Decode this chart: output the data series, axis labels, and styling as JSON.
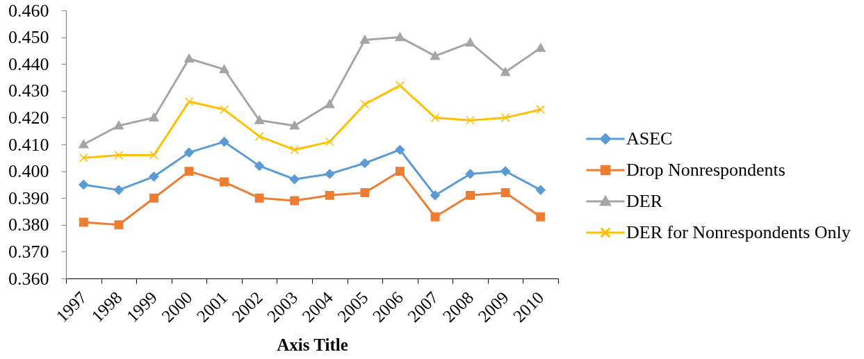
{
  "chart_data": {
    "type": "line",
    "xlabel": "Axis Title",
    "categories": [
      "1997",
      "1998",
      "1999",
      "2000",
      "2001",
      "2002",
      "2003",
      "2004",
      "2005",
      "2006",
      "2007",
      "2008",
      "2009",
      "2010"
    ],
    "series": [
      {
        "name": "ASEC",
        "color": "#5b9bd5",
        "marker": "diamond",
        "values": [
          0.395,
          0.393,
          0.398,
          0.407,
          0.411,
          0.402,
          0.397,
          0.399,
          0.403,
          0.408,
          0.391,
          0.399,
          0.4,
          0.393
        ]
      },
      {
        "name": "Drop Nonrespondents",
        "color": "#ed7d31",
        "marker": "square",
        "values": [
          0.381,
          0.38,
          0.39,
          0.4,
          0.396,
          0.39,
          0.389,
          0.391,
          0.392,
          0.4,
          0.383,
          0.391,
          0.392,
          0.383
        ]
      },
      {
        "name": "DER",
        "color": "#a5a5a5",
        "marker": "triangle",
        "values": [
          0.41,
          0.417,
          0.42,
          0.442,
          0.438,
          0.419,
          0.417,
          0.425,
          0.449,
          0.45,
          0.443,
          0.448,
          0.437,
          0.446
        ]
      },
      {
        "name": "DER for Nonrespondents Only",
        "color": "#ffc000",
        "marker": "cross",
        "values": [
          0.405,
          0.406,
          0.406,
          0.426,
          0.423,
          0.413,
          0.408,
          0.411,
          0.425,
          0.432,
          0.42,
          0.419,
          0.42,
          0.423
        ]
      }
    ],
    "ylim": [
      0.36,
      0.46
    ],
    "yticks": [
      {
        "value": 0.36,
        "label": "0.360"
      },
      {
        "value": 0.37,
        "label": "0.370"
      },
      {
        "value": 0.38,
        "label": "0.380"
      },
      {
        "value": 0.39,
        "label": "0.390"
      },
      {
        "value": 0.4,
        "label": "0.400"
      },
      {
        "value": 0.41,
        "label": "0.410"
      },
      {
        "value": 0.42,
        "label": "0.420"
      },
      {
        "value": 0.43,
        "label": "0.430"
      },
      {
        "value": 0.44,
        "label": "0.440"
      },
      {
        "value": 0.45,
        "label": "0.450"
      },
      {
        "value": 0.46,
        "label": "0.460"
      }
    ],
    "legend": "right"
  }
}
